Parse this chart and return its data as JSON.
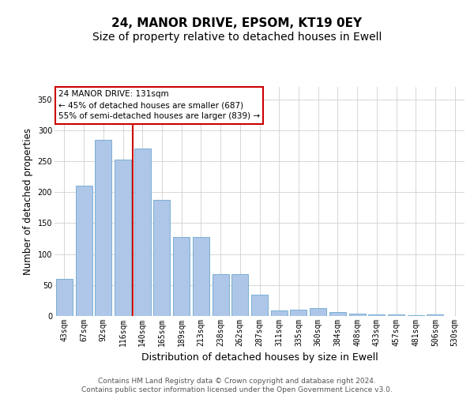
{
  "title1": "24, MANOR DRIVE, EPSOM, KT19 0EY",
  "title2": "Size of property relative to detached houses in Ewell",
  "xlabel": "Distribution of detached houses by size in Ewell",
  "ylabel": "Number of detached properties",
  "categories": [
    "43sqm",
    "67sqm",
    "92sqm",
    "116sqm",
    "140sqm",
    "165sqm",
    "189sqm",
    "213sqm",
    "238sqm",
    "262sqm",
    "287sqm",
    "311sqm",
    "335sqm",
    "360sqm",
    "384sqm",
    "408sqm",
    "433sqm",
    "457sqm",
    "481sqm",
    "506sqm",
    "530sqm"
  ],
  "values": [
    60,
    210,
    285,
    253,
    270,
    188,
    128,
    128,
    68,
    68,
    35,
    9,
    10,
    13,
    6,
    4,
    2,
    2,
    1,
    2,
    0
  ],
  "bar_color": "#aec6e8",
  "bar_edge_color": "#7aafd4",
  "vline_color": "#cc0000",
  "vline_pos": 3.5,
  "ylim": [
    0,
    370
  ],
  "yticks": [
    0,
    50,
    100,
    150,
    200,
    250,
    300,
    350
  ],
  "annotation_text": "24 MANOR DRIVE: 131sqm\n← 45% of detached houses are smaller (687)\n55% of semi-detached houses are larger (839) →",
  "annotation_box_color": "#ffffff",
  "annotation_box_edge": "#cc0000",
  "footer_text": "Contains HM Land Registry data © Crown copyright and database right 2024.\nContains public sector information licensed under the Open Government Licence v3.0.",
  "background_color": "#ffffff",
  "grid_color": "#d0d0d0",
  "title1_fontsize": 11,
  "title2_fontsize": 10,
  "xlabel_fontsize": 9,
  "ylabel_fontsize": 8.5,
  "tick_fontsize": 7,
  "annotation_fontsize": 7.5,
  "footer_fontsize": 6.5
}
